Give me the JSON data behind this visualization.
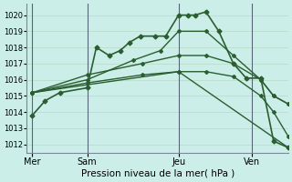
{
  "bg_color": "#cceee8",
  "grid_color_upper": "#aaddcc",
  "grid_color": "#bbddcc",
  "line_color": "#2a5e30",
  "marker_color": "#2a5e30",
  "xlabel": "Pression niveau de la mer( hPa )",
  "ylim": [
    1011.5,
    1020.7
  ],
  "yticks": [
    1012,
    1013,
    1014,
    1015,
    1016,
    1017,
    1018,
    1019,
    1020
  ],
  "xtick_labels": [
    "Mer",
    "Sam",
    "Jeu",
    "Ven"
  ],
  "xtick_positions": [
    0.0,
    3.0,
    8.0,
    12.0
  ],
  "xlim": [
    -0.3,
    14.0
  ],
  "vline_color": "#556677",
  "series": [
    {
      "x": [
        0,
        0.7,
        1.5,
        3.0,
        3.5,
        4.2,
        4.8,
        5.3,
        5.9,
        6.7,
        7.3,
        8.0,
        8.5,
        8.9,
        9.5,
        10.2,
        11.0,
        11.7,
        12.5,
        13.2,
        14.0
      ],
      "y": [
        1013.8,
        1014.7,
        1015.2,
        1015.5,
        1018.0,
        1017.5,
        1017.8,
        1018.3,
        1018.7,
        1018.7,
        1018.7,
        1020.0,
        1020.0,
        1020.0,
        1020.2,
        1019.0,
        1017.0,
        1016.1,
        1016.1,
        1012.2,
        1011.8
      ],
      "lw": 1.2,
      "ms": 2.5
    },
    {
      "x": [
        0,
        3.0,
        5.5,
        7.0,
        8.0,
        9.5,
        11.0,
        12.5,
        13.2,
        14.0
      ],
      "y": [
        1015.2,
        1016.0,
        1017.2,
        1017.8,
        1019.0,
        1019.0,
        1017.5,
        1016.0,
        1015.0,
        1014.5
      ],
      "lw": 1.0,
      "ms": 2.0
    },
    {
      "x": [
        0,
        3.0,
        6.0,
        8.0,
        9.5,
        11.0,
        12.5,
        13.2,
        14.0
      ],
      "y": [
        1015.2,
        1016.3,
        1017.0,
        1017.5,
        1017.5,
        1017.0,
        1016.0,
        1015.0,
        1014.5
      ],
      "lw": 1.0,
      "ms": 2.0
    },
    {
      "x": [
        0,
        3.0,
        6.0,
        8.0,
        9.5,
        11.0,
        12.5,
        13.2,
        14.0
      ],
      "y": [
        1015.2,
        1015.8,
        1016.3,
        1016.5,
        1016.5,
        1016.2,
        1015.0,
        1014.0,
        1012.5
      ],
      "lw": 1.0,
      "ms": 2.0
    },
    {
      "x": [
        0,
        8.0,
        14.0
      ],
      "y": [
        1015.2,
        1016.5,
        1011.8
      ],
      "lw": 1.0,
      "ms": 2.0
    }
  ]
}
